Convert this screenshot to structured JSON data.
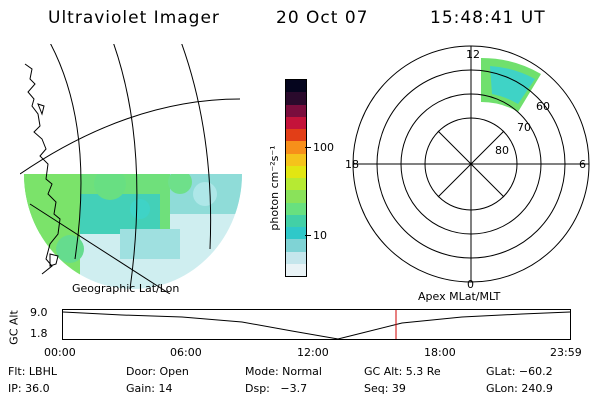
{
  "header": {
    "instrument": "Ultraviolet Imager",
    "date": "20 Oct 07",
    "time": "15:48:41 UT"
  },
  "colorbar": {
    "unit_label": "photon cm⁻²s⁻¹",
    "ticks": [
      "100",
      "10"
    ],
    "colors": [
      "#e9f3f6",
      "#c5e6ec",
      "#7fd3d5",
      "#2fc8c9",
      "#42d0a6",
      "#68e07f",
      "#8ae25a",
      "#b6ea33",
      "#e2e612",
      "#f5c31b",
      "#f78f1a",
      "#e23e17",
      "#c4133a",
      "#7a0d3d",
      "#2a0a2c",
      "#05051e"
    ]
  },
  "map_left": {
    "label": "Geographic Lat/Lon",
    "colors": {
      "green": "#6fe07b",
      "cyan": "#3fd3c6",
      "pale": "#cfeef0"
    }
  },
  "map_right": {
    "label": "Apex MLat/MLT",
    "mlt_labels": {
      "top": "12",
      "left": "18",
      "right": "6",
      "bottom": "0"
    },
    "lat_labels": [
      "60",
      "70",
      "80"
    ]
  },
  "altitude_plot": {
    "ylabel": "GC Alt",
    "yticks": [
      "9.0",
      "1.8"
    ],
    "xticks": [
      "00:00",
      "06:00",
      "12:00",
      "18:00",
      "23:59"
    ],
    "current_marker_color": "#d00000"
  },
  "info": {
    "row1": [
      {
        "key": "flt",
        "text": "Flt: LBHL"
      },
      {
        "key": "door",
        "text": "Door: Open"
      },
      {
        "key": "mode",
        "text": "Mode: Normal"
      },
      {
        "key": "gcalt",
        "text": "GC Alt: 5.3 Re"
      },
      {
        "key": "glat",
        "text": "GLat: −60.2"
      }
    ],
    "row2": [
      {
        "key": "ip",
        "text": "IP: 36.0"
      },
      {
        "key": "gain",
        "text": "Gain: 14"
      },
      {
        "key": "dsp",
        "text": "Dsp:   −3.7"
      },
      {
        "key": "seq",
        "text": "Seq: 39"
      },
      {
        "key": "glon",
        "text": "GLon: 240.9"
      }
    ]
  }
}
